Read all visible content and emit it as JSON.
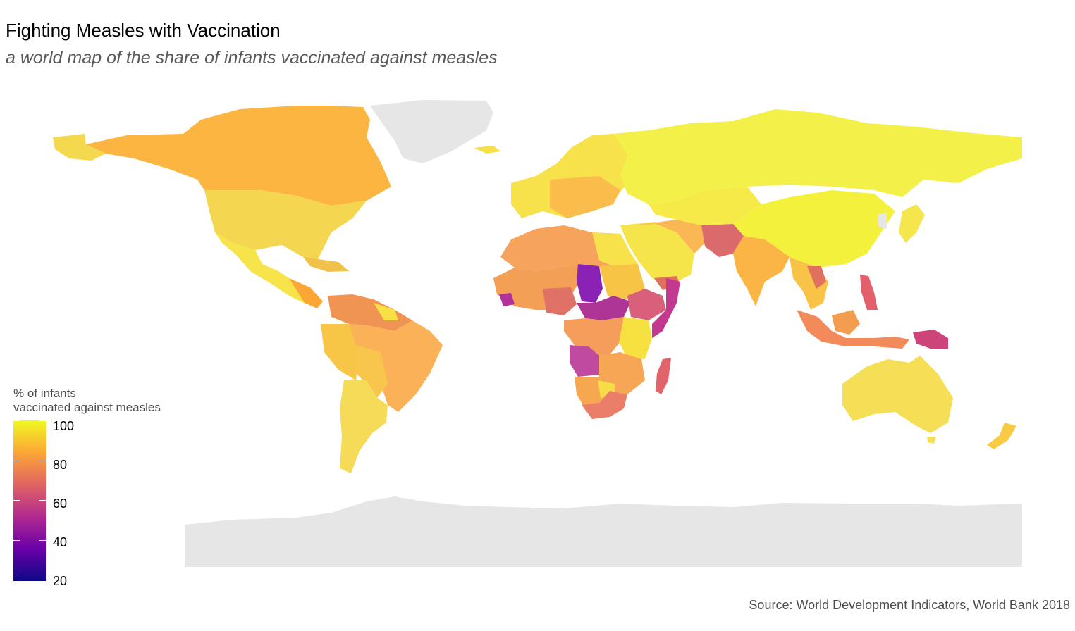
{
  "title": "Fighting Measles with Vaccination",
  "subtitle": "a world map of the share of infants vaccinated against measles",
  "caption": "Source: World Development Indicators, World Bank 2018",
  "legend": {
    "title_line1": "% of infants",
    "title_line2": "vaccinated against measles",
    "ticks": [
      "100",
      "80",
      "60",
      "40",
      "20"
    ],
    "range": [
      20,
      100
    ],
    "colors": [
      "#f0f921",
      "#fca636",
      "#e16462",
      "#b12a90",
      "#6a00a8",
      "#0d0887"
    ]
  },
  "chart_data": {
    "type": "choropleth",
    "variable": "% of infants vaccinated against measles",
    "no_data_color": "#e6e6e6",
    "regions": [
      {
        "name": "Russia",
        "value": 98
      },
      {
        "name": "China",
        "value": 99
      },
      {
        "name": "Canada",
        "value": 90
      },
      {
        "name": "United States",
        "value": 92
      },
      {
        "name": "Mexico",
        "value": 97
      },
      {
        "name": "Brazil",
        "value": 84
      },
      {
        "name": "Argentina",
        "value": 90
      },
      {
        "name": "Australia",
        "value": 94
      },
      {
        "name": "India",
        "value": 88
      },
      {
        "name": "Indonesia",
        "value": 76
      },
      {
        "name": "Chad",
        "value": 37
      },
      {
        "name": "Central African Republic",
        "value": 49
      },
      {
        "name": "South Sudan",
        "value": 47
      },
      {
        "name": "Angola",
        "value": 50
      },
      {
        "name": "Somalia",
        "value": 46
      },
      {
        "name": "Ethiopia",
        "value": 62
      },
      {
        "name": "Nigeria",
        "value": 65
      },
      {
        "name": "Madagascar",
        "value": 64
      },
      {
        "name": "Afghanistan",
        "value": 64
      },
      {
        "name": "Pakistan",
        "value": 66
      },
      {
        "name": "Papua New Guinea",
        "value": 60
      },
      {
        "name": "South Africa",
        "value": 72
      },
      {
        "name": "Algeria",
        "value": 88
      },
      {
        "name": "Kazakhstan",
        "value": 99
      }
    ]
  }
}
